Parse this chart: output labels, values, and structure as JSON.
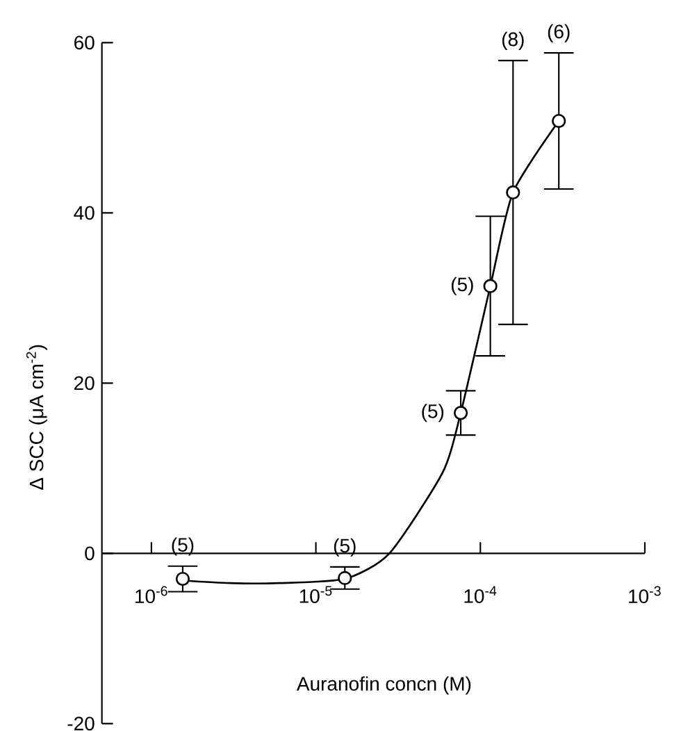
{
  "chart_data": {
    "type": "scatter",
    "xlabel": "Auranofin concn (M)",
    "ylabel": "Δ SCC (μA cm$^{-2}$)",
    "log": "x",
    "grid": false,
    "xlim": [
      5e-07,
      0.001
    ],
    "ylim": [
      -20,
      60
    ],
    "xticks": [
      {
        "value": 1e-06,
        "label": "10$^{-6}$"
      },
      {
        "value": 1e-05,
        "label": "10$^{-5}$"
      },
      {
        "value": 0.0001,
        "label": "10$^{-4}$"
      },
      {
        "value": 0.001,
        "label": "10$^{-3}$"
      }
    ],
    "yticks": [
      -20,
      0,
      20,
      40,
      60
    ],
    "series": [
      {
        "type": "line",
        "color": "#000000",
        "marker": "none",
        "line_style": "solid",
        "x": [
          1.55e-06,
          3e-06,
          5.9e-06,
          1.5e-05,
          2.8e-05,
          5.9e-05,
          7.6e-05,
          0.000115,
          0.000158,
          0.0003
        ],
        "values": [
          -3.2,
          -3.5,
          -3.5,
          -3.0,
          0,
          9.5,
          16.5,
          31.4,
          42.4,
          50.8
        ]
      },
      {
        "type": "scatter",
        "color": "#000000",
        "marker": "circle",
        "x": [
          1.55e-06,
          1.5e-05,
          7.6e-05,
          0.000115,
          0.000158,
          0.0003
        ],
        "values": [
          -3.0,
          -2.9,
          16.5,
          31.4,
          42.4,
          50.8
        ],
        "errors": [
          1.5,
          1.3,
          2.6,
          8.2,
          15.5,
          8
        ]
      }
    ],
    "annotations": [
      {
        "text": "(5)",
        "x": 1.55e-06,
        "y": -1.5
      },
      {
        "text": "(5)",
        "x": 1.5e-05,
        "y": -1.6
      },
      {
        "text": "(5)",
        "x": 7.6e-05,
        "y": 16.5
      },
      {
        "text": "(5)",
        "x": 0.000115,
        "y": 31.4
      },
      {
        "text": "(8)",
        "x": 0.000158,
        "y": 57.9
      },
      {
        "text": "(6)",
        "x": 0.0003,
        "y": 58.8
      }
    ]
  }
}
